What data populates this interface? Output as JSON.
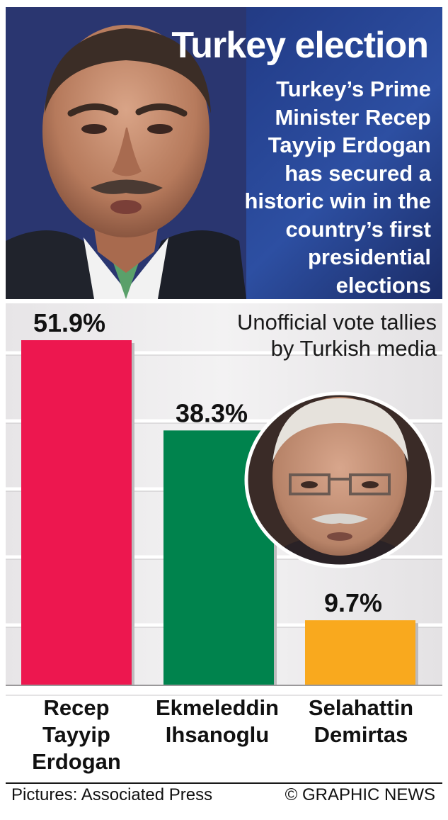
{
  "header": {
    "title": "Turkey election",
    "subtitle": "Turkey’s Prime Minister Recep Tayyip Erdogan has secured a historic win in the country’s first presidential elections"
  },
  "note": {
    "line1": "Unofficial vote tallies",
    "line2": "by Turkish media"
  },
  "chart_data": {
    "type": "bar",
    "categories": [
      "Recep Tayyip Erdogan",
      "Ekmeleddin Ihsanoglu",
      "Selahattin Demirtas"
    ],
    "category_lines": [
      [
        "Recep",
        "Tayyip",
        "Erdogan"
      ],
      [
        "Ekmeleddin",
        "Ihsanoglu"
      ],
      [
        "Selahattin",
        "Demirtas"
      ]
    ],
    "values": [
      51.9,
      38.3,
      9.7
    ],
    "value_labels": [
      "51.9%",
      "38.3%",
      "9.7%"
    ],
    "colors": [
      "#ed174f",
      "#00834d",
      "#f9a91e"
    ],
    "ylim": [
      0,
      51.9
    ],
    "grid": true,
    "title": "",
    "xlabel": "",
    "ylabel": ""
  },
  "footer": {
    "credit": "Pictures: Associated Press",
    "source": "© GRAPHIC NEWS"
  }
}
